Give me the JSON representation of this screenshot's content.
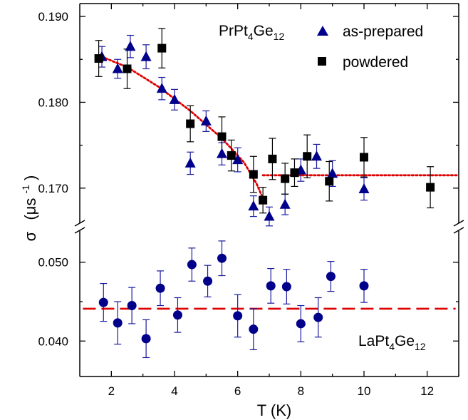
{
  "chart_data": {
    "type": "scatter",
    "x_axis": {
      "label": "T (K)",
      "range": [
        1,
        13
      ],
      "ticks": [
        2,
        4,
        6,
        8,
        10,
        12
      ]
    },
    "y_axis": {
      "label_symbol": "σ",
      "label_unit_open": "(μs",
      "label_unit_exp": "-1",
      "label_unit_close": ")",
      "broken": true,
      "upper_panel": {
        "range": [
          0.1655,
          0.1915
        ],
        "ticks": [
          0.17,
          0.18,
          0.19
        ],
        "tick_labels": [
          "0.170",
          "0.180",
          "0.190"
        ]
      },
      "lower_panel": {
        "range": [
          0.0355,
          0.0545
        ],
        "ticks": [
          0.04,
          0.05
        ],
        "tick_labels": [
          "0.040",
          "0.050"
        ]
      }
    },
    "labels": {
      "pr_compound": {
        "base": "PrPt",
        "sub1": "4",
        "mid": "Ge",
        "sub2": "12"
      },
      "la_compound": {
        "base": "LaPt",
        "sub1": "4",
        "mid": "Ge",
        "sub2": "12"
      }
    },
    "legend": {
      "placement": "top-right",
      "entries": [
        {
          "name": "as-prepared",
          "marker": "triangle",
          "color": "#00008b"
        },
        {
          "name": "powdered",
          "marker": "square",
          "color": "#000000"
        }
      ]
    },
    "series": [
      {
        "name": "as-prepared",
        "panel": "upper",
        "marker": "triangle",
        "color": "#00008b",
        "errorbar_color": "#1a1aa0",
        "points": [
          {
            "x": 1.7,
            "y": 0.1853,
            "err": 0.0012
          },
          {
            "x": 2.2,
            "y": 0.1839,
            "err": 0.0011
          },
          {
            "x": 2.6,
            "y": 0.1865,
            "err": 0.0013
          },
          {
            "x": 3.1,
            "y": 0.1853,
            "err": 0.0014
          },
          {
            "x": 3.6,
            "y": 0.1816,
            "err": 0.0013
          },
          {
            "x": 4.0,
            "y": 0.1803,
            "err": 0.0012
          },
          {
            "x": 4.5,
            "y": 0.1729,
            "err": 0.0013
          },
          {
            "x": 5.0,
            "y": 0.1778,
            "err": 0.0012
          },
          {
            "x": 5.5,
            "y": 0.174,
            "err": 0.0013
          },
          {
            "x": 6.0,
            "y": 0.1733,
            "err": 0.0014
          },
          {
            "x": 6.5,
            "y": 0.1679,
            "err": 0.0012
          },
          {
            "x": 7.0,
            "y": 0.1667,
            "err": 0.0011
          },
          {
            "x": 7.5,
            "y": 0.1681,
            "err": 0.0012
          },
          {
            "x": 8.0,
            "y": 0.1721,
            "err": 0.0013
          },
          {
            "x": 8.5,
            "y": 0.1737,
            "err": 0.0014
          },
          {
            "x": 9.0,
            "y": 0.1717,
            "err": 0.0015
          },
          {
            "x": 10.0,
            "y": 0.1699,
            "err": 0.0013
          }
        ]
      },
      {
        "name": "powdered",
        "panel": "upper",
        "marker": "square",
        "color": "#000000",
        "errorbar_color": "#000000",
        "points": [
          {
            "x": 1.6,
            "y": 0.1851,
            "err": 0.0021
          },
          {
            "x": 2.5,
            "y": 0.1839,
            "err": 0.0023
          },
          {
            "x": 3.6,
            "y": 0.1863,
            "err": 0.0023
          },
          {
            "x": 4.5,
            "y": 0.1775,
            "err": 0.0021
          },
          {
            "x": 5.5,
            "y": 0.176,
            "err": 0.0023
          },
          {
            "x": 5.8,
            "y": 0.1738,
            "err": 0.0018
          },
          {
            "x": 6.5,
            "y": 0.1716,
            "err": 0.0021
          },
          {
            "x": 6.8,
            "y": 0.1686,
            "err": 0.0015
          },
          {
            "x": 7.1,
            "y": 0.1734,
            "err": 0.0024
          },
          {
            "x": 7.5,
            "y": 0.1711,
            "err": 0.0018
          },
          {
            "x": 7.8,
            "y": 0.1718,
            "err": 0.0016
          },
          {
            "x": 8.2,
            "y": 0.1737,
            "err": 0.0025
          },
          {
            "x": 8.9,
            "y": 0.1708,
            "err": 0.0023
          },
          {
            "x": 10.0,
            "y": 0.1736,
            "err": 0.0023
          },
          {
            "x": 12.1,
            "y": 0.1701,
            "err": 0.0024
          }
        ]
      },
      {
        "name": "LaPt4Ge12",
        "panel": "lower",
        "marker": "circle",
        "color": "#00008b",
        "errorbar_color": "#1a1aa0",
        "points": [
          {
            "x": 1.75,
            "y": 0.0449,
            "err": 0.0024
          },
          {
            "x": 2.2,
            "y": 0.0423,
            "err": 0.0027
          },
          {
            "x": 2.65,
            "y": 0.0445,
            "err": 0.0023
          },
          {
            "x": 3.1,
            "y": 0.0403,
            "err": 0.0024
          },
          {
            "x": 3.55,
            "y": 0.0467,
            "err": 0.0022
          },
          {
            "x": 4.1,
            "y": 0.0433,
            "err": 0.0022
          },
          {
            "x": 4.55,
            "y": 0.0497,
            "err": 0.0021
          },
          {
            "x": 5.05,
            "y": 0.0476,
            "err": 0.002
          },
          {
            "x": 5.5,
            "y": 0.0505,
            "err": 0.0022
          },
          {
            "x": 6.0,
            "y": 0.0432,
            "err": 0.0027
          },
          {
            "x": 6.5,
            "y": 0.0415,
            "err": 0.0026
          },
          {
            "x": 7.05,
            "y": 0.047,
            "err": 0.0022
          },
          {
            "x": 7.55,
            "y": 0.0469,
            "err": 0.0022
          },
          {
            "x": 8.0,
            "y": 0.0422,
            "err": 0.0023
          },
          {
            "x": 8.55,
            "y": 0.043,
            "err": 0.0025
          },
          {
            "x": 8.95,
            "y": 0.0482,
            "err": 0.0019
          },
          {
            "x": 10.0,
            "y": 0.047,
            "err": 0.0021
          }
        ]
      }
    ],
    "fit_lines": [
      {
        "panel": "upper",
        "style": "dotted",
        "color": "#dd0000",
        "points": [
          [
            1.7,
            0.1853
          ],
          [
            2.5,
            0.1841
          ],
          [
            3.5,
            0.1818
          ],
          [
            4.5,
            0.179
          ],
          [
            5.5,
            0.1758
          ],
          [
            6.2,
            0.173
          ],
          [
            6.6,
            0.1705
          ],
          [
            6.8,
            0.1688
          ]
        ]
      },
      {
        "panel": "upper",
        "style": "dotted",
        "color": "#dd0000",
        "points": [
          [
            6.8,
            0.1715
          ],
          [
            13.0,
            0.1715
          ]
        ]
      },
      {
        "panel": "lower",
        "style": "dashed",
        "color": "#dd0000",
        "points": [
          [
            1.1,
            0.0441
          ],
          [
            12.9,
            0.0441
          ]
        ]
      }
    ]
  }
}
